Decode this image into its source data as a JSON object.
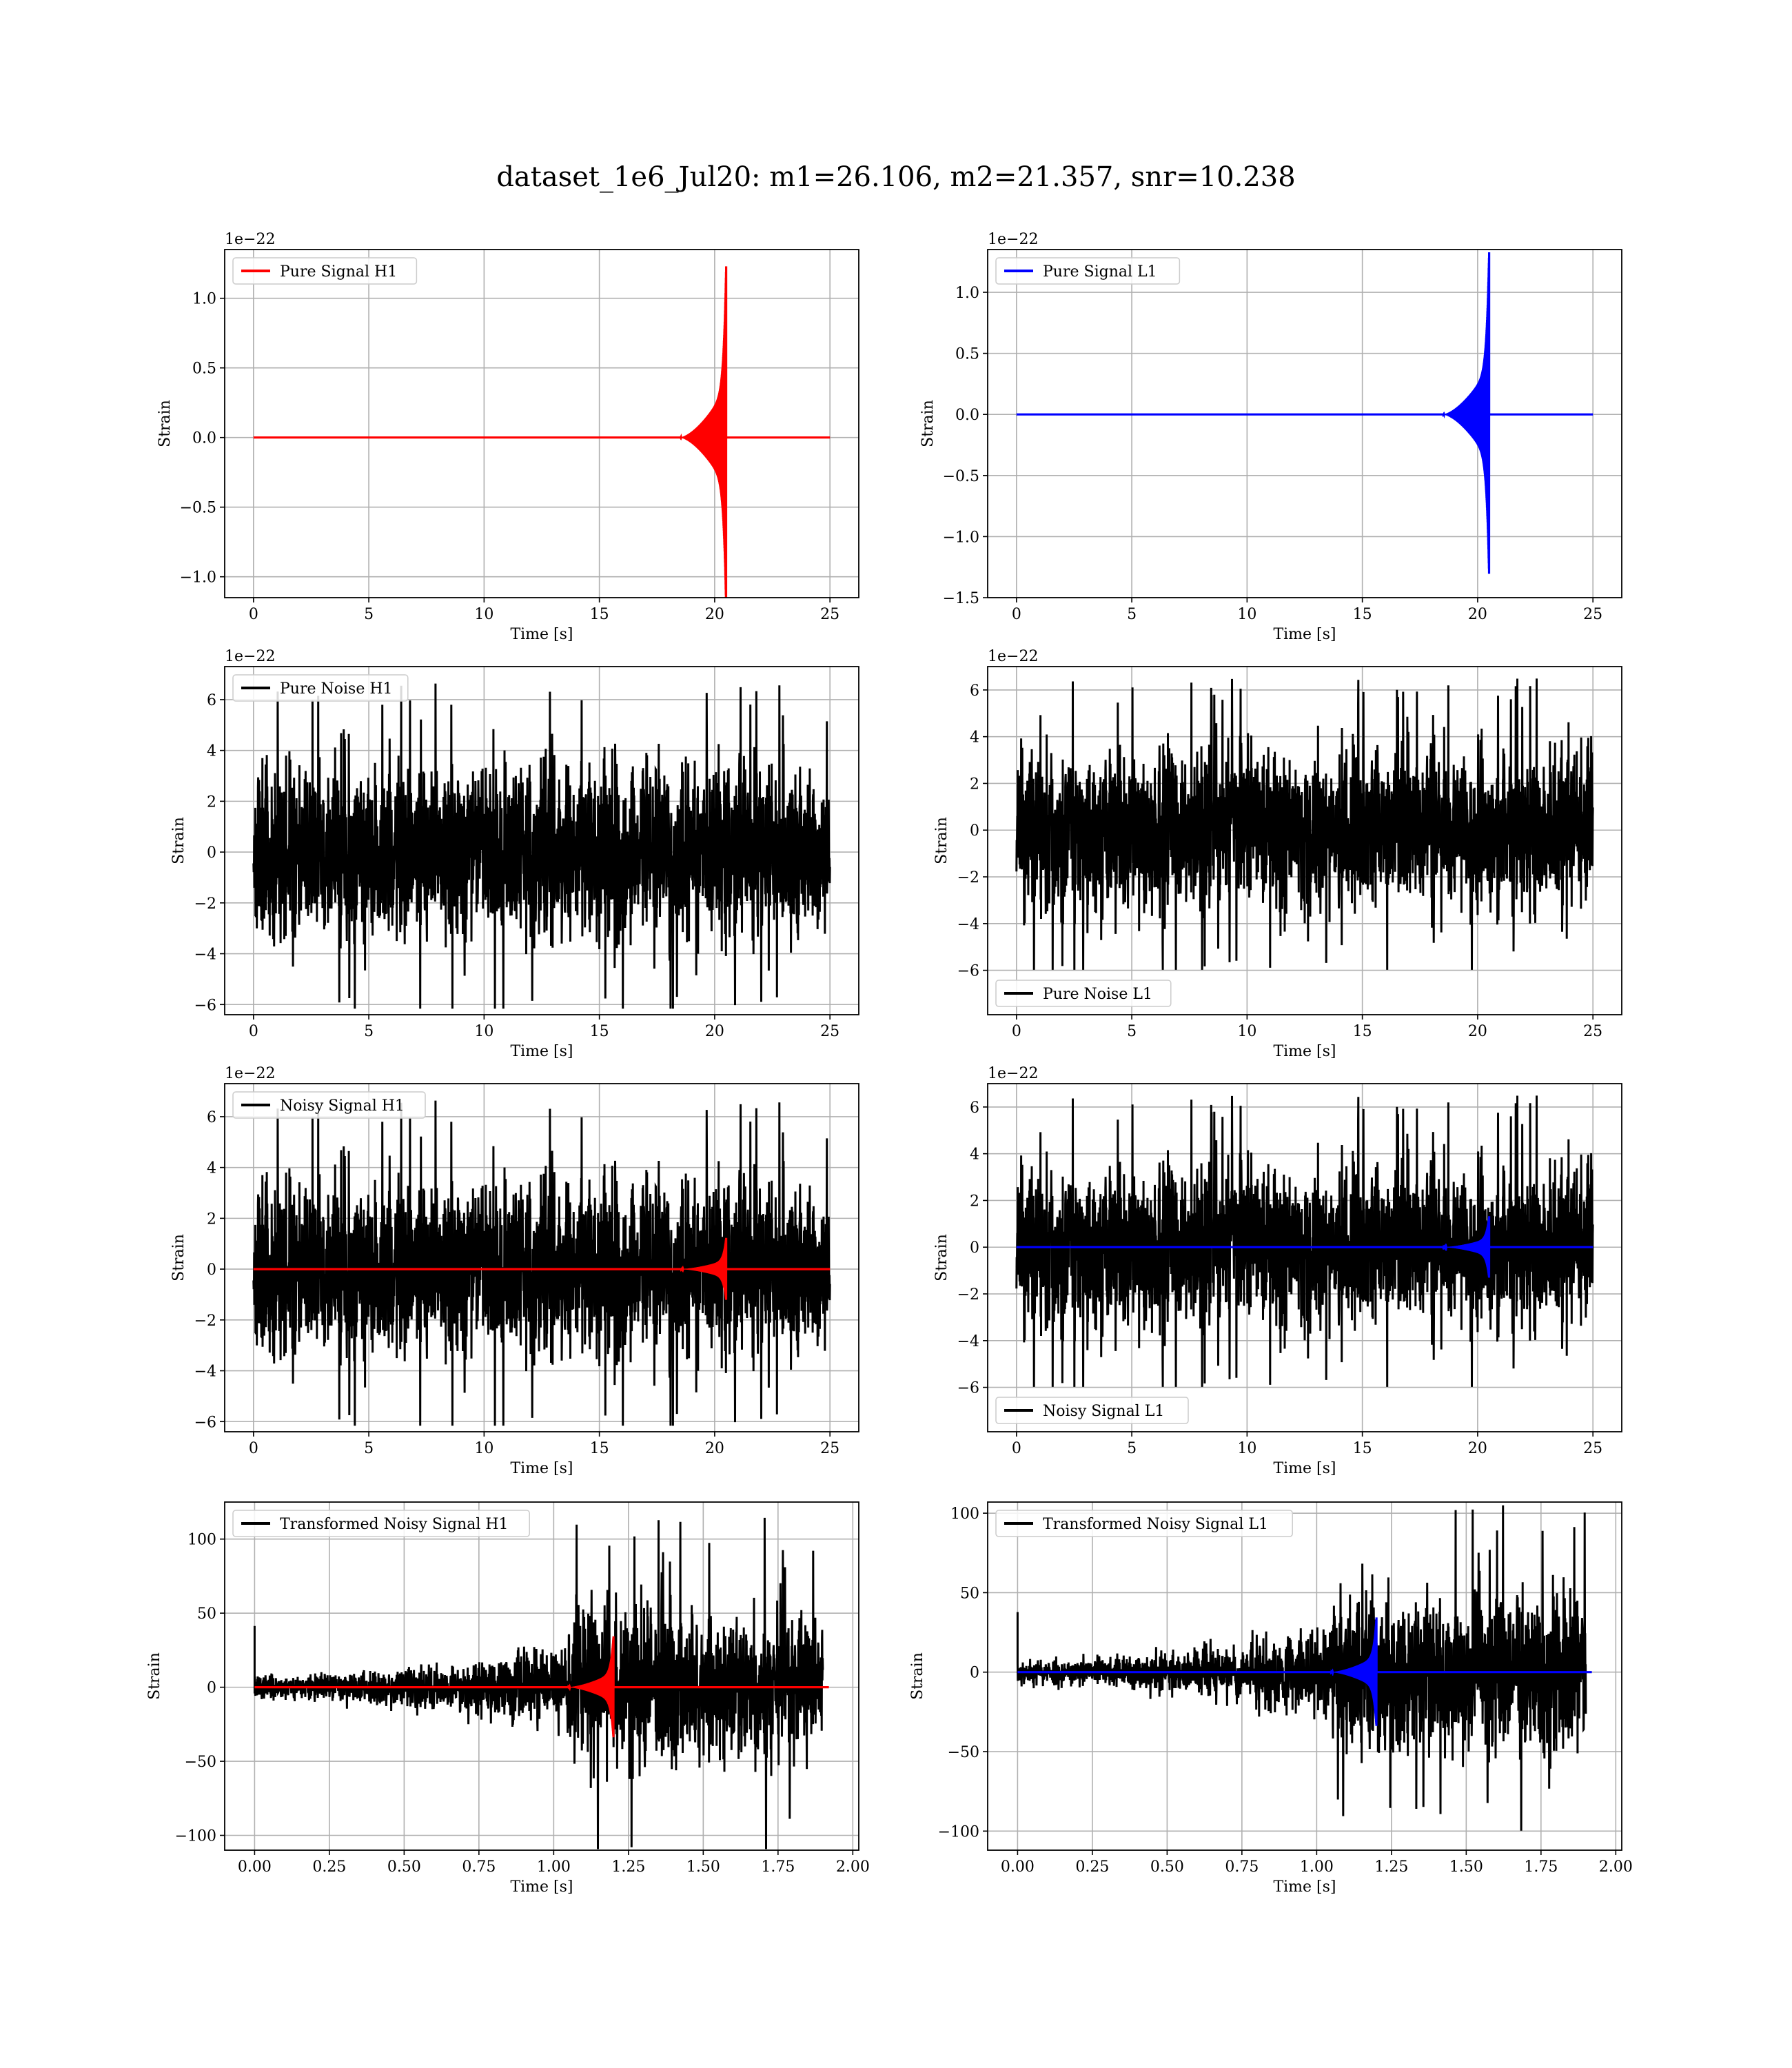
{
  "figure": {
    "title": "dataset_1e6_Jul20: m1=26.106, m2=21.357, snr=10.238"
  },
  "colors": {
    "h1": "#ff0000",
    "l1": "#0000ff",
    "noise": "#000000",
    "grid": "#b0b0b0"
  },
  "chart_data": [
    {
      "id": "pure-signal-h1",
      "type": "line",
      "series": [
        {
          "name": "Pure Signal H1",
          "color": "#ff0000",
          "kind": "chirp",
          "amplitude": 1.25,
          "merger_time": 20.5,
          "baseline": 0.0
        }
      ],
      "xlabel": "Time [s]",
      "ylabel": "Strain",
      "offset_text": "1e−22",
      "xlim": [
        -1.25,
        26.25
      ],
      "ylim": [
        -1.15,
        1.35
      ],
      "xticks": [
        0,
        5,
        10,
        15,
        20,
        25
      ],
      "xtick_labels": [
        "0",
        "5",
        "10",
        "15",
        "20",
        "25"
      ],
      "yticks": [
        -1.0,
        -0.5,
        0.0,
        0.5,
        1.0
      ],
      "ytick_labels": [
        "−1.0",
        "−0.5",
        "0.0",
        "0.5",
        "1.0"
      ],
      "legend_position": "upper-left",
      "grid": true
    },
    {
      "id": "pure-signal-l1",
      "type": "line",
      "series": [
        {
          "name": "Pure Signal L1",
          "color": "#0000ff",
          "kind": "chirp",
          "amplitude": 1.35,
          "merger_time": 20.5,
          "baseline": 0.0
        }
      ],
      "xlabel": "Time [s]",
      "ylabel": "Strain",
      "offset_text": "1e−22",
      "xlim": [
        -1.25,
        26.25
      ],
      "ylim": [
        -1.5,
        1.35
      ],
      "xticks": [
        0,
        5,
        10,
        15,
        20,
        25
      ],
      "xtick_labels": [
        "0",
        "5",
        "10",
        "15",
        "20",
        "25"
      ],
      "yticks": [
        -1.5,
        -1.0,
        -0.5,
        0.0,
        0.5,
        1.0
      ],
      "ytick_labels": [
        "−1.5",
        "−1.0",
        "−0.5",
        "0.0",
        "0.5",
        "1.0"
      ],
      "legend_position": "upper-left",
      "grid": true
    },
    {
      "id": "pure-noise-h1",
      "type": "line",
      "series": [
        {
          "name": "Pure Noise H1",
          "color": "#000000",
          "kind": "noise",
          "amplitude": 6.7,
          "rms": 1.6,
          "seed": 11
        }
      ],
      "xlabel": "Time [s]",
      "ylabel": "Strain",
      "offset_text": "1e−22",
      "xlim": [
        -1.25,
        26.25
      ],
      "ylim": [
        -6.4,
        7.3
      ],
      "xticks": [
        0,
        5,
        10,
        15,
        20,
        25
      ],
      "xtick_labels": [
        "0",
        "5",
        "10",
        "15",
        "20",
        "25"
      ],
      "yticks": [
        -6,
        -4,
        -2,
        0,
        2,
        4,
        6
      ],
      "ytick_labels": [
        "−6",
        "−4",
        "−2",
        "0",
        "2",
        "4",
        "6"
      ],
      "legend_position": "upper-left",
      "grid": true
    },
    {
      "id": "pure-noise-l1",
      "type": "line",
      "series": [
        {
          "name": "Pure Noise L1",
          "color": "#000000",
          "kind": "noise",
          "amplitude": 6.5,
          "rms": 1.6,
          "seed": 23
        }
      ],
      "xlabel": "Time [s]",
      "ylabel": "Strain",
      "offset_text": "1e−22",
      "xlim": [
        -1.25,
        26.25
      ],
      "ylim": [
        -7.9,
        7.0
      ],
      "xticks": [
        0,
        5,
        10,
        15,
        20,
        25
      ],
      "xtick_labels": [
        "0",
        "5",
        "10",
        "15",
        "20",
        "25"
      ],
      "yticks": [
        -6,
        -4,
        -2,
        0,
        2,
        4,
        6
      ],
      "ytick_labels": [
        "−6",
        "−4",
        "−2",
        "0",
        "2",
        "4",
        "6"
      ],
      "legend_position": "lower-left",
      "grid": true
    },
    {
      "id": "noisy-signal-h1",
      "type": "line",
      "series": [
        {
          "name": "Noisy Signal H1",
          "color": "#000000",
          "kind": "noise",
          "amplitude": 6.7,
          "rms": 1.6,
          "seed": 11
        },
        {
          "color": "#ff0000",
          "kind": "chirp",
          "amplitude": 1.25,
          "merger_time": 20.5,
          "baseline": 0.0
        }
      ],
      "xlabel": "Time [s]",
      "ylabel": "Strain",
      "offset_text": "1e−22",
      "xlim": [
        -1.25,
        26.25
      ],
      "ylim": [
        -6.4,
        7.3
      ],
      "xticks": [
        0,
        5,
        10,
        15,
        20,
        25
      ],
      "xtick_labels": [
        "0",
        "5",
        "10",
        "15",
        "20",
        "25"
      ],
      "yticks": [
        -6,
        -4,
        -2,
        0,
        2,
        4,
        6
      ],
      "ytick_labels": [
        "−6",
        "−4",
        "−2",
        "0",
        "2",
        "4",
        "6"
      ],
      "legend_position": "upper-left",
      "grid": true
    },
    {
      "id": "noisy-signal-l1",
      "type": "line",
      "series": [
        {
          "name": "Noisy Signal L1",
          "color": "#000000",
          "kind": "noise",
          "amplitude": 6.5,
          "rms": 1.6,
          "seed": 23
        },
        {
          "color": "#0000ff",
          "kind": "chirp",
          "amplitude": 1.35,
          "merger_time": 20.5,
          "baseline": 0.0
        }
      ],
      "xlabel": "Time [s]",
      "ylabel": "Strain",
      "offset_text": "1e−22",
      "xlim": [
        -1.25,
        26.25
      ],
      "ylim": [
        -7.9,
        7.0
      ],
      "xticks": [
        0,
        5,
        10,
        15,
        20,
        25
      ],
      "xtick_labels": [
        "0",
        "5",
        "10",
        "15",
        "20",
        "25"
      ],
      "yticks": [
        -6,
        -4,
        -2,
        0,
        2,
        4,
        6
      ],
      "ytick_labels": [
        "−6",
        "−4",
        "−2",
        "0",
        "2",
        "4",
        "6"
      ],
      "legend_position": "lower-left",
      "grid": true
    },
    {
      "id": "transformed-noisy-signal-h1",
      "type": "line",
      "series": [
        {
          "name": "Transformed Noisy Signal H1",
          "color": "#000000",
          "kind": "whitened",
          "amplitude": 115,
          "seed": 37
        },
        {
          "color": "#ff0000",
          "kind": "chirp",
          "amplitude": 35,
          "merger_time": 1.2,
          "baseline": 0.0
        }
      ],
      "xlabel": "Time [s]",
      "ylabel": "Strain",
      "offset_text": "",
      "xlim": [
        -0.1,
        2.02
      ],
      "ylim": [
        -110,
        125
      ],
      "xticks": [
        0.0,
        0.25,
        0.5,
        0.75,
        1.0,
        1.25,
        1.5,
        1.75,
        2.0
      ],
      "xtick_labels": [
        "0.00",
        "0.25",
        "0.50",
        "0.75",
        "1.00",
        "1.25",
        "1.50",
        "1.75",
        "2.00"
      ],
      "yticks": [
        -100,
        -50,
        0,
        50,
        100
      ],
      "ytick_labels": [
        "−100",
        "−50",
        "0",
        "50",
        "100"
      ],
      "legend_position": "upper-left",
      "grid": true
    },
    {
      "id": "transformed-noisy-signal-l1",
      "type": "line",
      "series": [
        {
          "name": "Transformed Noisy Signal L1",
          "color": "#000000",
          "kind": "whitened",
          "amplitude": 105,
          "seed": 53
        },
        {
          "color": "#0000ff",
          "kind": "chirp",
          "amplitude": 35,
          "merger_time": 1.2,
          "baseline": 0.0
        }
      ],
      "xlabel": "Time [s]",
      "ylabel": "Strain",
      "offset_text": "",
      "xlim": [
        -0.1,
        2.02
      ],
      "ylim": [
        -112,
        107
      ],
      "xticks": [
        0.0,
        0.25,
        0.5,
        0.75,
        1.0,
        1.25,
        1.5,
        1.75,
        2.0
      ],
      "xtick_labels": [
        "0.00",
        "0.25",
        "0.50",
        "0.75",
        "1.00",
        "1.25",
        "1.50",
        "1.75",
        "2.00"
      ],
      "yticks": [
        -100,
        -50,
        0,
        50,
        100
      ],
      "ytick_labels": [
        "−100",
        "−50",
        "0",
        "50",
        "100"
      ],
      "legend_position": "upper-left",
      "grid": true
    }
  ]
}
